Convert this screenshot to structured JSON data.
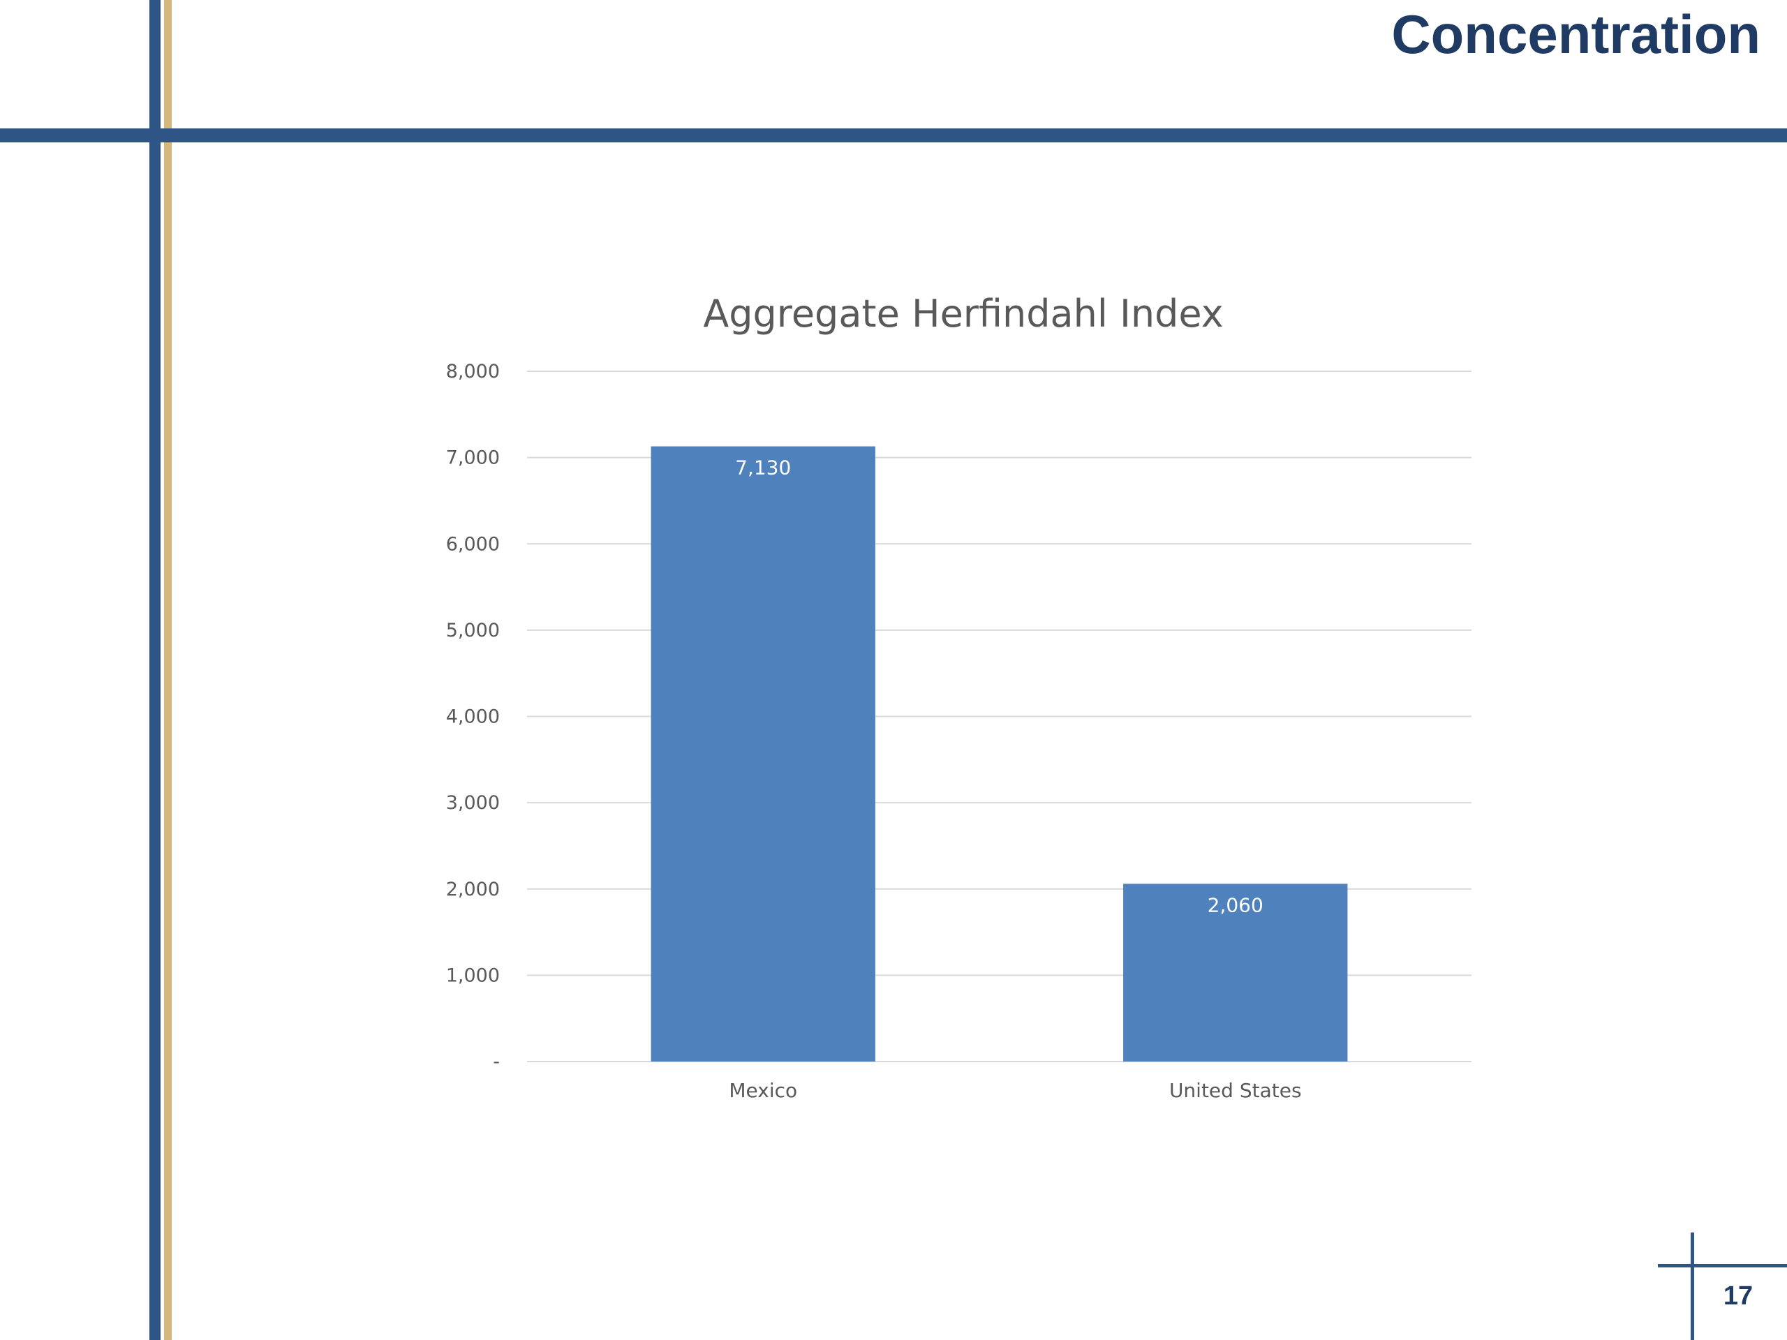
{
  "slide": {
    "title": "Concentration",
    "page_number": "17"
  },
  "colors": {
    "rule_blue": "#2f5486",
    "rule_gold": "#d6b77c",
    "title_color": "#1f3b64",
    "bar_color": "#4f81bd",
    "gridline": "#d9d9d9",
    "axis_text": "#595959",
    "data_label": "#ffffff"
  },
  "chart_data": {
    "type": "bar",
    "title": "Aggregate Herfindahl Index",
    "xlabel": "",
    "ylabel": "",
    "categories": [
      "Mexico",
      "United States"
    ],
    "values": [
      7130,
      2060
    ],
    "data_labels": [
      "7,130",
      "2,060"
    ],
    "ylim": [
      0,
      8000
    ],
    "yticks": [
      0,
      1000,
      2000,
      3000,
      4000,
      5000,
      6000,
      7000,
      8000
    ],
    "ytick_labels": [
      "-",
      "1,000",
      "2,000",
      "3,000",
      "4,000",
      "5,000",
      "6,000",
      "7,000",
      "8,000"
    ],
    "grid": true,
    "legend": "none"
  }
}
